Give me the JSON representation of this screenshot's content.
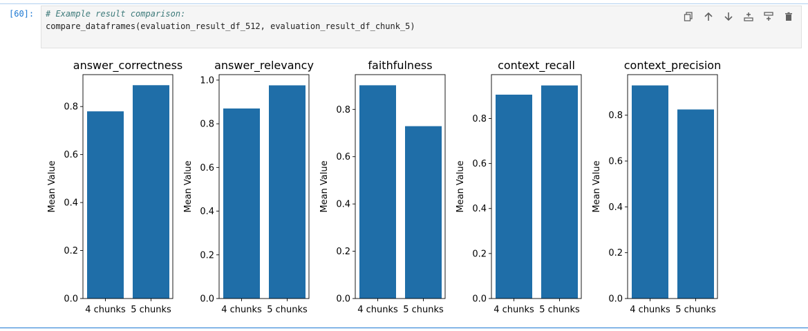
{
  "cell": {
    "prompt": "[60]:",
    "code_comment": "# Example result comparison:",
    "code_call": "compare_dataframes(evaluation_result_df_512, evaluation_result_df_chunk_5)",
    "toolbar_icons": [
      "duplicate-icon",
      "move-up-icon",
      "move-down-icon",
      "insert-above-icon",
      "insert-below-icon",
      "delete-icon"
    ]
  },
  "colors": {
    "bar": "#1f6ea8",
    "prompt": "#1976d2",
    "comment": "#3d7a7a"
  },
  "chart_data": [
    {
      "type": "bar",
      "title": "answer_correctness",
      "ylabel": "Mean Value",
      "categories": [
        "4 chunks",
        "5 chunks"
      ],
      "values": [
        0.78,
        0.889
      ],
      "ylim": [
        0,
        0.933
      ],
      "yticks": [
        "0.0",
        "0.2",
        "0.4",
        "0.6",
        "0.8"
      ],
      "ytick_values": [
        0,
        0.2,
        0.4,
        0.6,
        0.8
      ]
    },
    {
      "type": "bar",
      "title": "answer_relevancy",
      "ylabel": "Mean Value",
      "categories": [
        "4 chunks",
        "5 chunks"
      ],
      "values": [
        0.87,
        0.976
      ],
      "ylim": [
        0,
        1.025
      ],
      "yticks": [
        "0.0",
        "0.2",
        "0.4",
        "0.6",
        "0.8",
        "1.0"
      ],
      "ytick_values": [
        0,
        0.2,
        0.4,
        0.6,
        0.8,
        1.0
      ]
    },
    {
      "type": "bar",
      "title": "faithfulness",
      "ylabel": "Mean Value",
      "categories": [
        "4 chunks",
        "5 chunks"
      ],
      "values": [
        0.902,
        0.729
      ],
      "ylim": [
        0,
        0.947
      ],
      "yticks": [
        "0.0",
        "0.2",
        "0.4",
        "0.6",
        "0.8"
      ],
      "ytick_values": [
        0,
        0.2,
        0.4,
        0.6,
        0.8
      ]
    },
    {
      "type": "bar",
      "title": "context_recall",
      "ylabel": "Mean Value",
      "categories": [
        "4 chunks",
        "5 chunks"
      ],
      "values": [
        0.906,
        0.947
      ],
      "ylim": [
        0,
        0.995
      ],
      "yticks": [
        "0.0",
        "0.2",
        "0.4",
        "0.6",
        "0.8"
      ],
      "ytick_values": [
        0,
        0.2,
        0.4,
        0.6,
        0.8
      ]
    },
    {
      "type": "bar",
      "title": "context_precision",
      "ylabel": "Mean Value",
      "categories": [
        "4 chunks",
        "5 chunks"
      ],
      "values": [
        0.93,
        0.825
      ],
      "ylim": [
        0,
        0.977
      ],
      "yticks": [
        "0.0",
        "0.2",
        "0.4",
        "0.6",
        "0.8"
      ],
      "ytick_values": [
        0,
        0.2,
        0.4,
        0.6,
        0.8
      ]
    }
  ]
}
